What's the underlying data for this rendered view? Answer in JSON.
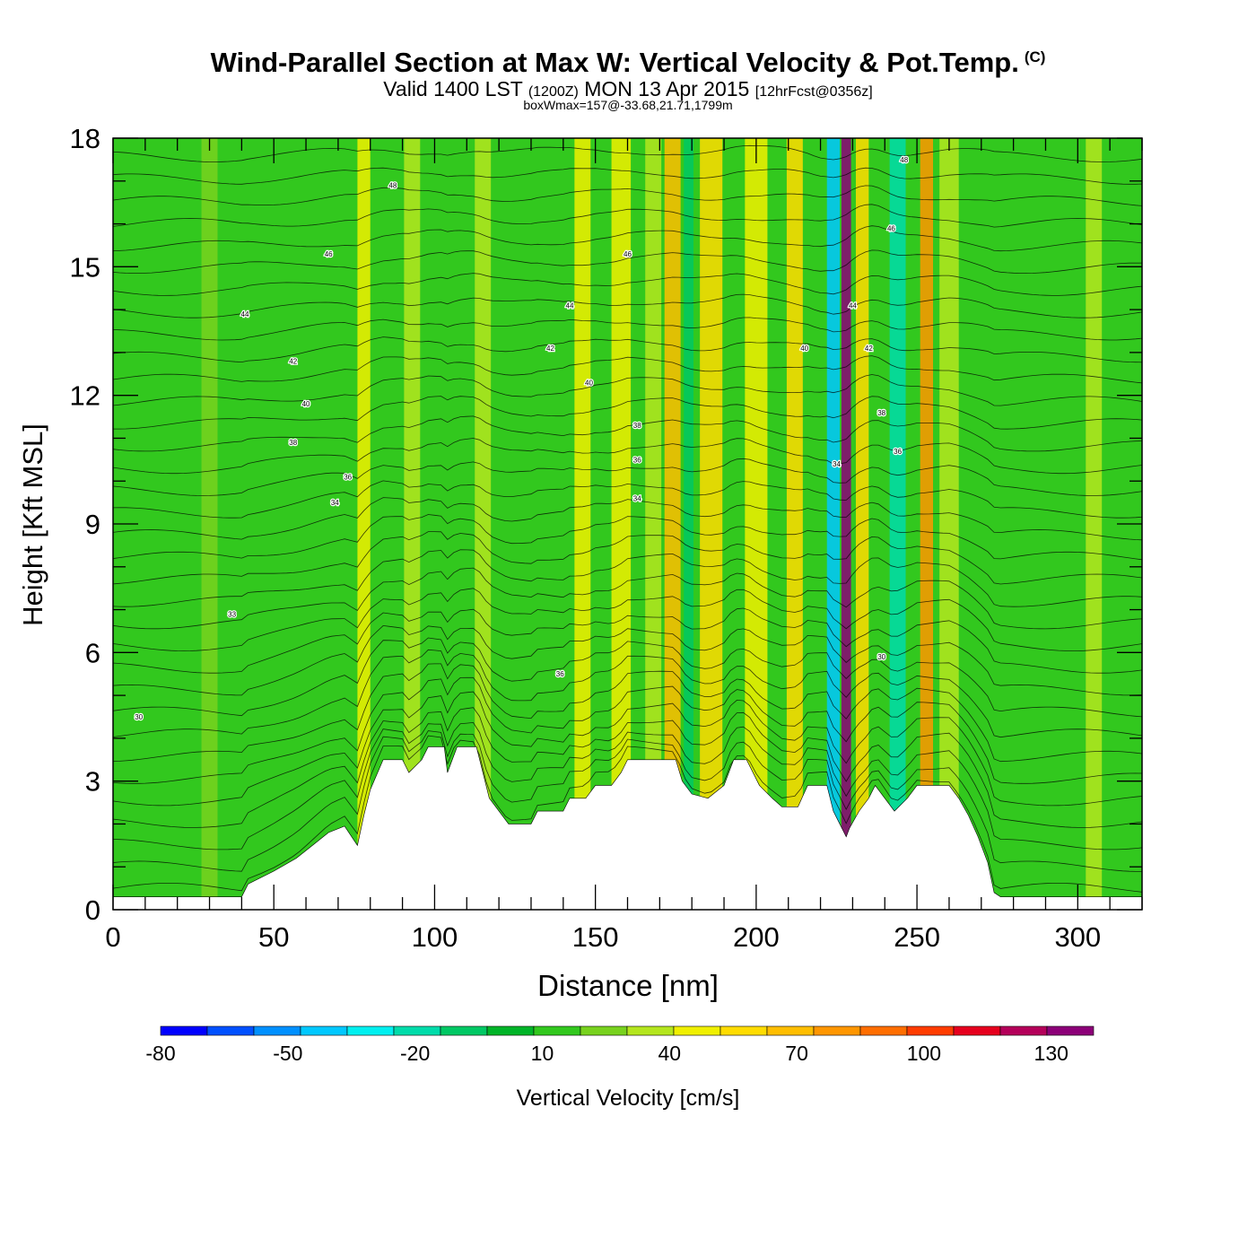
{
  "header": {
    "title": "Wind-Parallel Section at Max W: Vertical Velocity & Pot.Temp.",
    "copyright": "(C)",
    "valid_main": "Valid 1400 LST",
    "valid_utc": "(1200Z)",
    "valid_date": "MON 13 Apr 2015",
    "forecast_info": "[12hrFcst@0356z]",
    "box_info": "boxWmax=157@-33.68,21.71,1799m"
  },
  "chart_data": {
    "type": "heatmap",
    "xlabel": "Distance [nm]",
    "ylabel": "Height [Kft MSL]",
    "xlim": [
      0,
      320
    ],
    "ylim": [
      0,
      18
    ],
    "x_ticks": [
      0,
      50,
      100,
      150,
      200,
      250,
      300
    ],
    "x_tick_labels": [
      "0",
      "50",
      "100",
      "150",
      "200",
      "250",
      "300"
    ],
    "y_ticks": [
      0,
      3,
      6,
      9,
      12,
      15,
      18
    ],
    "y_tick_labels": [
      "0",
      "3",
      "6",
      "9",
      "12",
      "15",
      "18"
    ],
    "colorbar": {
      "label": "Vertical Velocity [cm/s]",
      "min": -80,
      "max": 140,
      "step": 10,
      "tick_values": [
        -80,
        -50,
        -20,
        10,
        40,
        70,
        100,
        130
      ],
      "tick_labels": [
        "-80",
        "-50",
        "-20",
        "10",
        "40",
        "70",
        "100",
        "130"
      ],
      "colors": [
        "#0000ff",
        "#0050ff",
        "#0090ff",
        "#00c8ff",
        "#00f0f0",
        "#00dcaa",
        "#00c864",
        "#00b428",
        "#32c81e",
        "#78d21e",
        "#b4e61e",
        "#f0f000",
        "#ffdc00",
        "#ffbe00",
        "#ff9600",
        "#ff6e00",
        "#ff3c00",
        "#e6001e",
        "#b4005a",
        "#8c0078"
      ]
    },
    "vertical_velocity_bands": [
      {
        "x": 8,
        "w": 4,
        "value": 0
      },
      {
        "x": 30,
        "w": 5,
        "value": 10
      },
      {
        "x": 72,
        "w": 6,
        "value": 5
      },
      {
        "x": 78,
        "w": 4,
        "value": 30
      },
      {
        "x": 93,
        "w": 5,
        "value": 20
      },
      {
        "x": 100,
        "w": 6,
        "value": 5
      },
      {
        "x": 115,
        "w": 5,
        "value": 20
      },
      {
        "x": 130,
        "w": 6,
        "value": 0
      },
      {
        "x": 146,
        "w": 5,
        "value": 30
      },
      {
        "x": 158,
        "w": 6,
        "value": 30
      },
      {
        "x": 168,
        "w": 5,
        "value": 20
      },
      {
        "x": 174,
        "w": 5,
        "value": 50
      },
      {
        "x": 179,
        "w": 3,
        "value": -20
      },
      {
        "x": 186,
        "w": 7,
        "value": 40
      },
      {
        "x": 200,
        "w": 7,
        "value": 30
      },
      {
        "x": 212,
        "w": 5,
        "value": 40
      },
      {
        "x": 224,
        "w": 4,
        "value": -50
      },
      {
        "x": 228,
        "w": 3,
        "value": 130
      },
      {
        "x": 233,
        "w": 4,
        "value": 40
      },
      {
        "x": 244,
        "w": 5,
        "value": -30
      },
      {
        "x": 253,
        "w": 4,
        "value": 60
      },
      {
        "x": 260,
        "w": 6,
        "value": 20
      },
      {
        "x": 280,
        "w": 5,
        "value": 0
      },
      {
        "x": 305,
        "w": 5,
        "value": 20
      }
    ],
    "terrain": [
      [
        0,
        0.3
      ],
      [
        40,
        0.3
      ],
      [
        42,
        0.6
      ],
      [
        50,
        0.9
      ],
      [
        57,
        1.2
      ],
      [
        62,
        1.5
      ],
      [
        67,
        1.8
      ],
      [
        72,
        1.95
      ],
      [
        76,
        1.5
      ],
      [
        78,
        2.2
      ],
      [
        80,
        2.8
      ],
      [
        84,
        3.5
      ],
      [
        90,
        3.5
      ],
      [
        92,
        3.2
      ],
      [
        96,
        3.5
      ],
      [
        98,
        3.8
      ],
      [
        103,
        3.8
      ],
      [
        104,
        3.2
      ],
      [
        107,
        3.8
      ],
      [
        113,
        3.8
      ],
      [
        115,
        3.2
      ],
      [
        117,
        2.6
      ],
      [
        120,
        2.3
      ],
      [
        123,
        2.0
      ],
      [
        130,
        2.0
      ],
      [
        132,
        2.3
      ],
      [
        140,
        2.3
      ],
      [
        142,
        2.6
      ],
      [
        147,
        2.6
      ],
      [
        150,
        2.9
      ],
      [
        155,
        2.9
      ],
      [
        158,
        3.2
      ],
      [
        160,
        3.5
      ],
      [
        175,
        3.5
      ],
      [
        177,
        3.0
      ],
      [
        180,
        2.7
      ],
      [
        185,
        2.6
      ],
      [
        190,
        2.9
      ],
      [
        193,
        3.5
      ],
      [
        197,
        3.5
      ],
      [
        199,
        3.2
      ],
      [
        201,
        2.9
      ],
      [
        205,
        2.6
      ],
      [
        208,
        2.4
      ],
      [
        213,
        2.4
      ],
      [
        216,
        2.9
      ],
      [
        222,
        2.9
      ],
      [
        224,
        2.3
      ],
      [
        226,
        2.0
      ],
      [
        228,
        1.7
      ],
      [
        229,
        1.9
      ],
      [
        232,
        2.3
      ],
      [
        235,
        2.6
      ],
      [
        237,
        2.9
      ],
      [
        240,
        2.6
      ],
      [
        243,
        2.3
      ],
      [
        247,
        2.6
      ],
      [
        250,
        2.9
      ],
      [
        260,
        2.9
      ],
      [
        263,
        2.6
      ],
      [
        266,
        2.2
      ],
      [
        269,
        1.7
      ],
      [
        272,
        1.1
      ],
      [
        274,
        0.4
      ],
      [
        276,
        0.3
      ],
      [
        320,
        0.3
      ]
    ],
    "pot_temp_contour_labels": [
      {
        "x": 8,
        "y": 4.5,
        "text": "30"
      },
      {
        "x": 37,
        "y": 6.9,
        "text": "33"
      },
      {
        "x": 41,
        "y": 13.9,
        "text": "44"
      },
      {
        "x": 56,
        "y": 12.8,
        "text": "42"
      },
      {
        "x": 60,
        "y": 11.8,
        "text": "40"
      },
      {
        "x": 56,
        "y": 10.9,
        "text": "38"
      },
      {
        "x": 69,
        "y": 9.5,
        "text": "34"
      },
      {
        "x": 73,
        "y": 10.1,
        "text": "36"
      },
      {
        "x": 67,
        "y": 15.3,
        "text": "46"
      },
      {
        "x": 87,
        "y": 16.9,
        "text": "48"
      },
      {
        "x": 136,
        "y": 13.1,
        "text": "42"
      },
      {
        "x": 142,
        "y": 14.1,
        "text": "44"
      },
      {
        "x": 148,
        "y": 12.3,
        "text": "40"
      },
      {
        "x": 139,
        "y": 5.5,
        "text": "36"
      },
      {
        "x": 160,
        "y": 15.3,
        "text": "46"
      },
      {
        "x": 163,
        "y": 11.3,
        "text": "38"
      },
      {
        "x": 163,
        "y": 10.5,
        "text": "36"
      },
      {
        "x": 163,
        "y": 9.6,
        "text": "34"
      },
      {
        "x": 215,
        "y": 13.1,
        "text": "40"
      },
      {
        "x": 225,
        "y": 10.4,
        "text": "34"
      },
      {
        "x": 230,
        "y": 14.1,
        "text": "44"
      },
      {
        "x": 235,
        "y": 13.1,
        "text": "42"
      },
      {
        "x": 239,
        "y": 11.6,
        "text": "38"
      },
      {
        "x": 244,
        "y": 10.7,
        "text": "36"
      },
      {
        "x": 239,
        "y": 5.9,
        "text": "30"
      },
      {
        "x": 242,
        "y": 15.9,
        "text": "46"
      },
      {
        "x": 246,
        "y": 17.5,
        "text": "48"
      }
    ]
  }
}
